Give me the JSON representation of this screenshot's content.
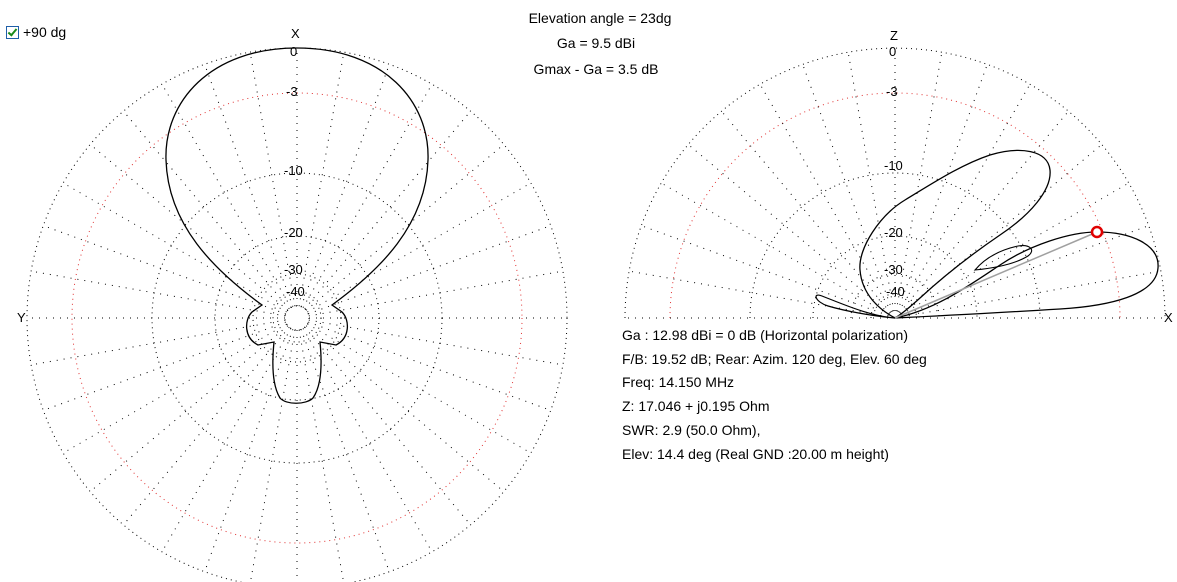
{
  "checkbox": {
    "label": "+90 dg",
    "checked": true
  },
  "header": {
    "elevation": "Elevation angle =  23dg",
    "ga": "Ga = 9.5 dBi",
    "gmax": "Gmax - Ga = 3.5 dB"
  },
  "azimuth_plot": {
    "top_axis": "X",
    "left_axis": "Y",
    "ring_labels": [
      "0",
      "-3",
      "-10",
      "-20",
      "-30",
      "-40"
    ]
  },
  "elevation_plot": {
    "top_axis": "Z",
    "right_axis": "X",
    "ring_labels": [
      "0",
      "-3",
      "-10",
      "-20",
      "-30",
      "-40"
    ]
  },
  "info": {
    "line1": "Ga : 12.98 dBi = 0 dB  (Horizontal polarization)",
    "line2": "F/B: 19.52 dB; Rear: Azim. 120 deg,  Elev. 60 deg",
    "line3": "Freq: 14.150 MHz",
    "line4": "Z: 17.046 + j0.195 Ohm",
    "line5": "SWR: 2.9 (50.0 Ohm),",
    "line6": "Elev: 14.4 deg (Real GND  :20.00 m height)"
  },
  "colors": {
    "grid": "#000000",
    "minus3_ring": "#e03030",
    "pattern": "#000000",
    "marker": "#e00000",
    "ray": "#a0a0a0"
  }
}
